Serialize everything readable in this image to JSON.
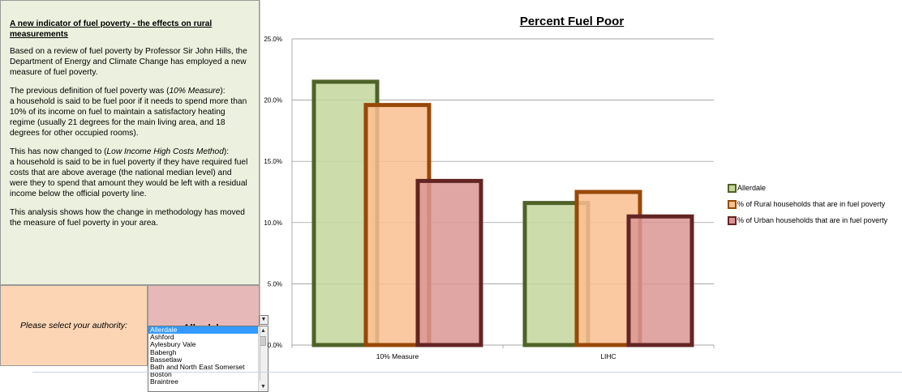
{
  "info": {
    "title": "A new indicator of fuel poverty - the effects on rural measurements",
    "para1": "Based on a review of fuel poverty by Professor Sir John Hills, the Department of Energy and Climate Change has employed a new measure of fuel poverty.",
    "para2_pre": "The previous definition of fuel poverty was (",
    "para2_em": "10% Measure",
    "para2_post": "):",
    "para2_body": "a household is said to be fuel poor if it needs to spend more than 10% of its income on fuel to maintain a satisfactory heating regime (usually 21 degrees for the main living area, and 18 degrees for other occupied rooms).",
    "para3_pre": "This has now changed to (",
    "para3_em": "Low Income High Costs Method",
    "para3_post": "):",
    "para3_body": "a household is said to be in fuel poverty if they have required fuel costs that are above average (the national median level) and were they to spend that amount they would be left with a residual income below the official poverty line.",
    "para4": "This analysis shows how the change in methodology has moved the measure of fuel poverty in your area."
  },
  "selector": {
    "label": "Please select your authority:",
    "value": "Allerdale",
    "options": [
      "Allerdale",
      "Ashford",
      "Aylesbury Vale",
      "Babergh",
      "Bassetlaw",
      "Bath and North East Somerset",
      "Boston",
      "Braintree"
    ],
    "selected_index": 0
  },
  "chart_data": {
    "type": "bar",
    "title": "Percent Fuel Poor",
    "categories": [
      "10% Measure",
      "LIHC"
    ],
    "series": [
      {
        "name": "Allerdale",
        "values": [
          0.215,
          0.116
        ],
        "fill": "#c3d69b",
        "stroke": "#4f6228"
      },
      {
        "name": "% of Rural households that are in fuel poverty",
        "values": [
          0.196,
          0.125
        ],
        "fill": "#fac090",
        "stroke": "#984807"
      },
      {
        "name": "% of Urban households that are in fuel poverty",
        "values": [
          0.134,
          0.105
        ],
        "fill": "#d99694",
        "stroke": "#632523"
      }
    ],
    "ylim": [
      0,
      0.25
    ],
    "yticks": [
      "0.0%",
      "5.0%",
      "10.0%",
      "15.0%",
      "20.0%",
      "25.0%"
    ],
    "grid": true,
    "legend": "right"
  }
}
